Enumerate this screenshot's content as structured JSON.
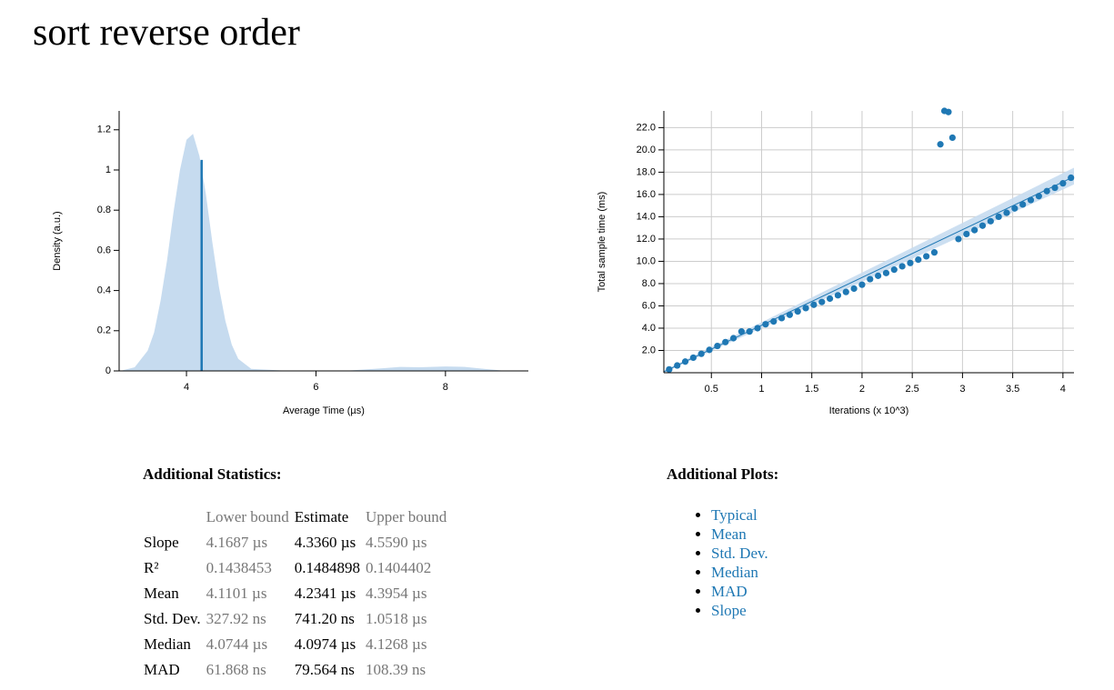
{
  "title": "sort reverse order",
  "chart_data": [
    {
      "type": "area",
      "x_label": "Average Time (µs)",
      "y_label": "Density (a.u.)",
      "x": [
        3.0,
        3.2,
        3.4,
        3.5,
        3.6,
        3.7,
        3.8,
        3.9,
        4.0,
        4.1,
        4.2,
        4.3,
        4.4,
        4.5,
        4.6,
        4.7,
        4.8,
        5.0,
        5.5,
        6.0,
        6.5,
        7.0,
        7.3,
        7.6,
        8.0,
        8.3,
        8.6,
        8.9
      ],
      "values": [
        0.002,
        0.018,
        0.1,
        0.19,
        0.35,
        0.55,
        0.79,
        1.0,
        1.15,
        1.18,
        1.07,
        0.88,
        0.64,
        0.42,
        0.25,
        0.13,
        0.06,
        0.01,
        0.002,
        0.001,
        0.002,
        0.012,
        0.02,
        0.018,
        0.022,
        0.02,
        0.01,
        0.001
      ],
      "color": "#c6dbef",
      "line_color": "#1f78b4",
      "mean_line": {
        "x": 4.2341,
        "y": 1.05
      },
      "xlim": [
        2.96,
        9.28
      ],
      "ylim": [
        0,
        1.294
      ],
      "xticks": [
        4,
        6,
        8
      ],
      "yticks": [
        0,
        0.2,
        0.4,
        0.6,
        0.8,
        1,
        1.2
      ],
      "grid": false
    },
    {
      "type": "scatter",
      "x_label": "Iterations (x 10^3)",
      "y_label": "Total sample time (ms)",
      "x": [
        0.08,
        0.16,
        0.24,
        0.32,
        0.4,
        0.48,
        0.56,
        0.64,
        0.72,
        0.8,
        0.88,
        0.96,
        1.04,
        1.12,
        1.2,
        1.28,
        1.36,
        1.44,
        1.52,
        1.6,
        1.68,
        1.76,
        1.84,
        1.92,
        2.0,
        2.08,
        2.16,
        2.24,
        2.32,
        2.4,
        2.48,
        2.56,
        2.64,
        2.72,
        2.78,
        2.82,
        2.86,
        2.9,
        2.96,
        3.04,
        3.12,
        3.2,
        3.28,
        3.36,
        3.44,
        3.52,
        3.6,
        3.68,
        3.76,
        3.84,
        3.92,
        4.0,
        4.08
      ],
      "values": [
        0.3,
        0.65,
        1.0,
        1.35,
        1.7,
        2.05,
        2.4,
        2.75,
        3.1,
        3.7,
        3.7,
        4.0,
        4.35,
        4.6,
        4.9,
        5.2,
        5.5,
        5.8,
        6.1,
        6.35,
        6.65,
        6.95,
        7.25,
        7.55,
        7.9,
        8.4,
        8.7,
        8.95,
        9.25,
        9.55,
        9.85,
        10.15,
        10.45,
        10.8,
        20.5,
        23.5,
        23.4,
        21.1,
        12.0,
        12.45,
        12.8,
        13.2,
        13.6,
        14.0,
        14.35,
        14.75,
        15.1,
        15.5,
        15.85,
        16.3,
        16.6,
        17.0,
        17.5
      ],
      "color": "#1f78b4",
      "band_color": "#c6dbef",
      "fit": {
        "x": [
          0.03,
          4.11
        ],
        "y": [
          0.1,
          17.6
        ]
      },
      "band": {
        "x": [
          0.03,
          4.11
        ],
        "lower": [
          0.0,
          16.9
        ],
        "upper": [
          0.2,
          18.4
        ]
      },
      "xlim": [
        0.027,
        4.11
      ],
      "ylim": [
        0,
        23.5
      ],
      "xticks": [
        0.5,
        1,
        1.5,
        2,
        2.5,
        3,
        3.5,
        4
      ],
      "yticks": [
        {
          "value": 2,
          "label": "2.0"
        },
        {
          "value": 4,
          "label": "4.0"
        },
        {
          "value": 6,
          "label": "6.0"
        },
        {
          "value": 8,
          "label": "8.0"
        },
        {
          "value": 10,
          "label": "10.0"
        },
        {
          "value": 12,
          "label": "12.0"
        },
        {
          "value": 14,
          "label": "14.0"
        },
        {
          "value": 16,
          "label": "16.0"
        },
        {
          "value": 18,
          "label": "18.0"
        },
        {
          "value": 20,
          "label": "20.0"
        },
        {
          "value": 22,
          "label": "22.0"
        }
      ],
      "grid": true
    }
  ],
  "statistics": {
    "heading": "Additional Statistics:",
    "columns": [
      "Lower bound",
      "Estimate",
      "Upper bound"
    ],
    "rows": [
      [
        "Slope",
        "4.1687 µs",
        "4.3360 µs",
        "4.5590 µs"
      ],
      [
        "R²",
        "0.1438453",
        "0.1484898",
        "0.1404402"
      ],
      [
        "Mean",
        "4.1101 µs",
        "4.2341 µs",
        "4.3954 µs"
      ],
      [
        "Std. Dev.",
        "327.92 ns",
        "741.20 ns",
        "1.0518 µs"
      ],
      [
        "Median",
        "4.0744 µs",
        "4.0974 µs",
        "4.1268 µs"
      ],
      [
        "MAD",
        "61.868 ns",
        "79.564 ns",
        "108.39 ns"
      ]
    ]
  },
  "plots": {
    "heading": "Additional Plots:",
    "links": [
      "Typical",
      "Mean",
      "Std. Dev.",
      "Median",
      "MAD",
      "Slope"
    ]
  }
}
